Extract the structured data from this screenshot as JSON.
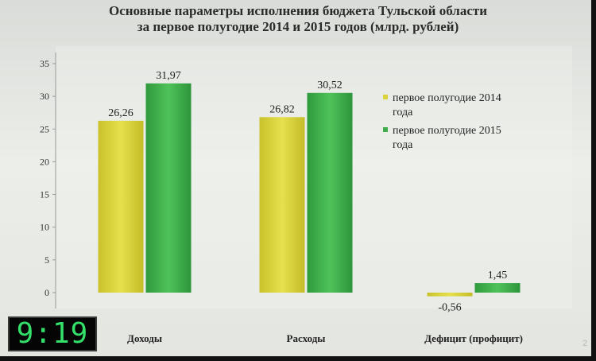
{
  "title": {
    "line1": "Основные параметры исполнения бюджета Тульской области",
    "line2": "за первое полугодие 2014 и 2015 годов (млрд. рублей)"
  },
  "clock": "9:19",
  "page_number": "2",
  "colors": {
    "series2014": "#d9d23a",
    "series2015": "#3eae4a",
    "text": "#222222"
  },
  "chart_data": {
    "type": "bar",
    "title": "Основные параметры исполнения бюджета Тульской области за первое полугодие 2014 и 2015 годов (млрд. рублей)",
    "categories": [
      "Доходы",
      "Расходы",
      "Дефицит (профицит)"
    ],
    "series": [
      {
        "name": "первое полугодие 2014 года",
        "values": [
          26.26,
          26.82,
          -0.56
        ],
        "labels": [
          "26,26",
          "26,82",
          "-0,56"
        ]
      },
      {
        "name": "первое полугодие 2015 года",
        "values": [
          31.97,
          30.52,
          1.45
        ],
        "labels": [
          "31,97",
          "30,52",
          "1,45"
        ]
      }
    ],
    "yticks": [
      "35",
      "30",
      "25",
      "20",
      "15",
      "10",
      "5",
      "0"
    ],
    "ytick_values": [
      35,
      30,
      25,
      20,
      15,
      10,
      5,
      0
    ],
    "ylim": [
      -2,
      35
    ],
    "grid": false,
    "legend_position": "right"
  }
}
